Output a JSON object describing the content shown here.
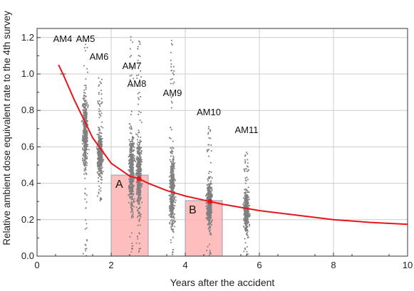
{
  "chart_data": {
    "type": "scatter",
    "xlabel": "Years after the accident",
    "ylabel": "Relative ambient dose equivalent rate to the 4th survey",
    "xlim": [
      0,
      10
    ],
    "ylim": [
      0,
      1.25
    ],
    "xticks": [
      "0",
      "2",
      "4",
      "6",
      "8",
      "10"
    ],
    "yticks": [
      "0.0",
      "0.2",
      "0.4",
      "0.6",
      "0.8",
      "1.0",
      "1.2"
    ],
    "grid": true,
    "colors": {
      "points": "#808080",
      "fit_curve": "#e8141c",
      "box_fill": "#ffb3b3",
      "box_edge": "#8fa3b8",
      "reference_line": "#555555",
      "grid": "#cccccc"
    },
    "clouds": [
      {
        "label": "AM4",
        "x": 0.7,
        "center": 1.0,
        "ymin": 1.0,
        "ymax": 1.0,
        "reference_only": true
      },
      {
        "label": "AM5",
        "x": 1.3,
        "center": 0.68,
        "ymin": 0.0,
        "ymax": 1.2
      },
      {
        "label": "AM6",
        "x": 1.7,
        "center": 0.56,
        "ymin": 0.3,
        "ymax": 0.98
      },
      {
        "label": "AM7",
        "x": 2.55,
        "center": 0.47,
        "ymin": 0.02,
        "ymax": 1.22
      },
      {
        "label": "AM8",
        "x": 2.75,
        "center": 0.45,
        "ymin": 0.02,
        "ymax": 1.22
      },
      {
        "label": "AM9",
        "x": 3.65,
        "center": 0.36,
        "ymin": 0.0,
        "ymax": 1.2
      },
      {
        "label": "AM10",
        "x": 4.65,
        "center": 0.29,
        "ymin": 0.0,
        "ymax": 0.72
      },
      {
        "label": "AM11",
        "x": 5.65,
        "center": 0.25,
        "ymin": 0.0,
        "ymax": 0.59
      }
    ],
    "fit_curve": {
      "x": [
        0.58,
        0.7,
        1.0,
        1.5,
        2.0,
        2.5,
        2.75,
        3.0,
        3.5,
        4.0,
        4.67,
        5.0,
        6.0,
        7.0,
        8.0,
        9.0,
        10.0
      ],
      "y": [
        1.05,
        1.0,
        0.86,
        0.65,
        0.51,
        0.44,
        0.425,
        0.4,
        0.36,
        0.33,
        0.3,
        0.285,
        0.25,
        0.225,
        0.2,
        0.185,
        0.175
      ]
    },
    "fit_markers": [
      {
        "x": 2.75,
        "y": 0.425
      },
      {
        "x": 4.67,
        "y": 0.3
      }
    ],
    "boxes": [
      {
        "label": "A",
        "x0": 2.0,
        "x1": 3.0,
        "height": 0.445
      },
      {
        "label": "B",
        "x0": 4.0,
        "x1": 5.0,
        "height": 0.305
      }
    ]
  }
}
